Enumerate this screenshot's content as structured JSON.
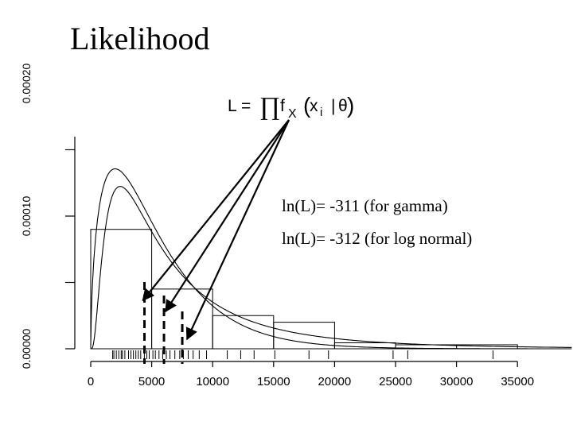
{
  "slide": {
    "title": "Likelihood",
    "formula": {
      "lhs": "L",
      "equals": "=",
      "product": "∏",
      "f": "f",
      "sub_x": "X",
      "open": "(",
      "x": "x",
      "sub_i": "i",
      "bar": "|",
      "theta": "θ",
      "close": ")"
    },
    "notes": [
      "ln(L)= -311 (for gamma)",
      "ln(L)= -312 (for log normal)"
    ]
  },
  "chart_data": {
    "type": "histogram",
    "x": {
      "ticks": [
        0,
        5000,
        10000,
        15000,
        20000,
        25000,
        30000,
        35000
      ],
      "tick_labels": [
        "0",
        "5000",
        "10000",
        "15000",
        "20000",
        "25000",
        "30000",
        "35000"
      ],
      "range": [
        0,
        37000
      ]
    },
    "y": {
      "ticks": [
        0,
        0.0001,
        0.0002
      ],
      "tick_labels": [
        "0.00000",
        "0.00010",
        "0.00020"
      ],
      "range": [
        0,
        0.0002
      ]
    },
    "histogram": {
      "bin_edges": [
        0,
        5000,
        10000,
        15000,
        20000,
        25000,
        30000,
        35000
      ],
      "density": [
        9e-05,
        4.5e-05,
        2.5e-05,
        2e-05,
        4.5e-06,
        3e-06,
        3e-06
      ]
    },
    "curves": [
      {
        "name": "gamma",
        "shape": 1.6,
        "rate": 0.0003
      },
      {
        "name": "log normal",
        "meanlog": 8.6,
        "sdlog": 0.9
      }
    ],
    "observations": [
      1800,
      1900,
      2100,
      2300,
      2500,
      2600,
      2800,
      3100,
      3300,
      3500,
      3700,
      3900,
      4100,
      4400,
      4600,
      4800,
      5100,
      5300,
      5600,
      5900,
      6200,
      6500,
      6900,
      7300,
      7600,
      8000,
      8400,
      8900,
      9500,
      11200,
      12300,
      13400,
      15100,
      17900,
      19500,
      24800,
      26000,
      33000
    ],
    "highlighted_observations": [
      4800,
      6400,
      7900
    ],
    "highlight_targets": [
      4800,
      6400,
      7900
    ]
  }
}
